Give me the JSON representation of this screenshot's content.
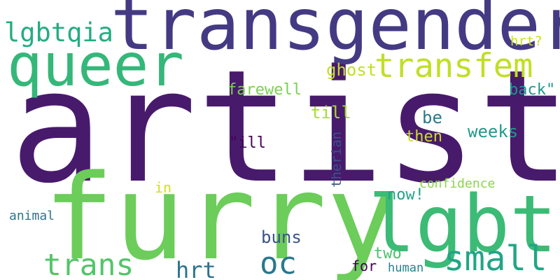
{
  "words": [
    {
      "text": "artist",
      "color": "#481a6c"
    },
    {
      "text": "transgender",
      "color": "#443a83"
    },
    {
      "text": "furry",
      "color": "#6ccd5a"
    },
    {
      "text": "queer",
      "color": "#35b779"
    },
    {
      "text": "lgbtq",
      "color": "#3bbb75"
    },
    {
      "text": "transfem",
      "color": "#c0df25"
    },
    {
      "text": "lgbtqia",
      "color": "#25ac82"
    },
    {
      "text": "small",
      "color": "#21a585"
    },
    {
      "text": "trans",
      "color": "#52c569"
    },
    {
      "text": "oc",
      "color": "#2a788e"
    },
    {
      "text": "hrt",
      "color": "#2c728e"
    },
    {
      "text": "ghost",
      "color": "#c2df23"
    },
    {
      "text": "hrt?",
      "color": "#cae11f"
    },
    {
      "text": "farewell",
      "color": "#7ad151"
    },
    {
      "text": "back\"",
      "color": "#1f988b"
    },
    {
      "text": "till",
      "color": "#a8db34"
    },
    {
      "text": "be",
      "color": "#2a788e"
    },
    {
      "text": "weeks",
      "color": "#1f9a8a"
    },
    {
      "text": "then",
      "color": "#c8e020"
    },
    {
      "text": "\"ill",
      "color": "#440154"
    },
    {
      "text": "therian",
      "color": "#3b528b"
    },
    {
      "text": "confidence",
      "color": "#8bd646"
    },
    {
      "text": "in",
      "color": "#d0e11c"
    },
    {
      "text": "now!",
      "color": "#20a386"
    },
    {
      "text": "animal",
      "color": "#2a768e"
    },
    {
      "text": "buns",
      "color": "#3b518b"
    },
    {
      "text": "two",
      "color": "#4ac16d"
    },
    {
      "text": "for",
      "color": "#440154"
    },
    {
      "text": "human",
      "color": "#26828e"
    }
  ]
}
